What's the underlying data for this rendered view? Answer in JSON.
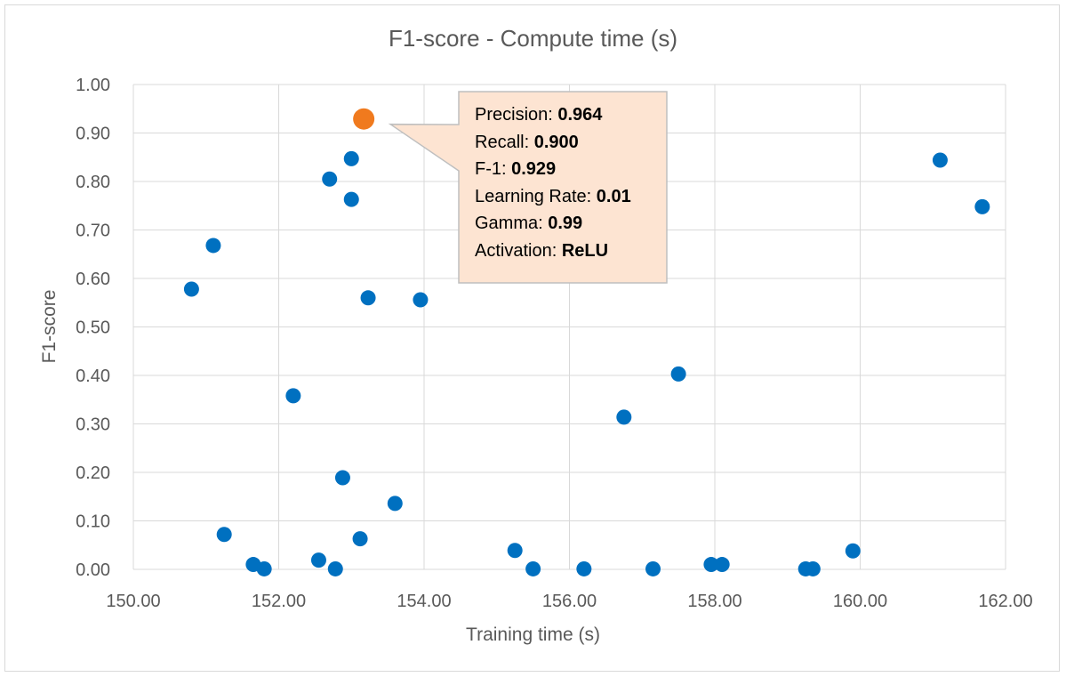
{
  "chart_data": {
    "type": "scatter",
    "title": "F1-score - Compute time (s)",
    "xlabel": "Training time (s)",
    "ylabel": "F1-score",
    "xlim": [
      150,
      162
    ],
    "ylim": [
      0,
      1
    ],
    "x_ticks": [
      "150.00",
      "152.00",
      "154.00",
      "156.00",
      "158.00",
      "160.00",
      "162.00"
    ],
    "y_ticks": [
      "0.00",
      "0.10",
      "0.20",
      "0.30",
      "0.40",
      "0.50",
      "0.60",
      "0.70",
      "0.80",
      "0.90",
      "1.00"
    ],
    "grid": true,
    "colors": {
      "points": "#0070c0",
      "highlight": "#f07a1e",
      "callout_fill": "#fde4d2",
      "callout_border": "#bfbfbf"
    },
    "series": [
      {
        "points": [
          [
            150.8,
            0.578
          ],
          [
            151.1,
            0.668
          ],
          [
            151.25,
            0.072
          ],
          [
            151.65,
            0.01
          ],
          [
            151.8,
            0.001
          ],
          [
            152.2,
            0.358
          ],
          [
            152.55,
            0.019
          ],
          [
            152.7,
            0.805
          ],
          [
            152.78,
            0.001
          ],
          [
            152.88,
            0.189
          ],
          [
            153.0,
            0.847
          ],
          [
            153.0,
            0.763
          ],
          [
            153.12,
            0.063
          ],
          [
            153.23,
            0.56
          ],
          [
            153.6,
            0.136
          ],
          [
            153.95,
            0.556
          ],
          [
            155.25,
            0.039
          ],
          [
            155.5,
            0.001
          ],
          [
            156.2,
            0.001
          ],
          [
            156.75,
            0.314
          ],
          [
            157.15,
            0.001
          ],
          [
            157.5,
            0.403
          ],
          [
            157.95,
            0.01
          ],
          [
            158.1,
            0.01
          ],
          [
            159.25,
            0.001
          ],
          [
            159.35,
            0.001
          ],
          [
            159.9,
            0.038
          ],
          [
            161.1,
            0.844
          ],
          [
            161.68,
            0.748
          ]
        ]
      }
    ],
    "highlight_point": [
      153.17,
      0.929
    ],
    "callout": {
      "lines": [
        {
          "label": "Precision: ",
          "value": "0.964"
        },
        {
          "label": "Recall: ",
          "value": "0.900"
        },
        {
          "label": "F-1: ",
          "value": "0.929"
        },
        {
          "label": "Learning Rate: ",
          "value": "0.01"
        },
        {
          "label": "Gamma: ",
          "value": "0.99"
        },
        {
          "label": "Activation: ",
          "value": "ReLU"
        }
      ]
    }
  }
}
